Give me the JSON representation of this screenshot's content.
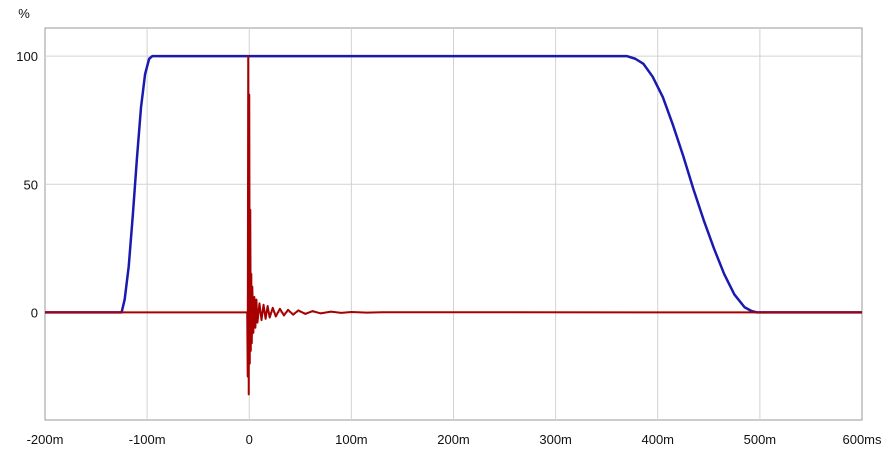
{
  "chart_data": {
    "type": "line",
    "y_unit": "%",
    "xlabel": "",
    "ylabel": "",
    "xlim": [
      -200,
      600
    ],
    "ylim": [
      -42,
      111
    ],
    "grid": true,
    "x_ticks": [
      {
        "value": -200,
        "label": "-200m"
      },
      {
        "value": -100,
        "label": "-100m"
      },
      {
        "value": 0,
        "label": "0"
      },
      {
        "value": 100,
        "label": "100m"
      },
      {
        "value": 200,
        "label": "200m"
      },
      {
        "value": 300,
        "label": "300m"
      },
      {
        "value": 400,
        "label": "400m"
      },
      {
        "value": 500,
        "label": "500m"
      },
      {
        "value": 600,
        "label": "600ms"
      }
    ],
    "y_ticks": [
      {
        "value": 100,
        "label": "100"
      },
      {
        "value": 50,
        "label": "50"
      },
      {
        "value": 0,
        "label": "0"
      }
    ],
    "series": [
      {
        "color": "#1a1ab0",
        "x": [
          -200,
          -125,
          -122,
          -118,
          -114,
          -110,
          -106,
          -102,
          -98,
          -95,
          370,
          378,
          386,
          395,
          405,
          415,
          425,
          435,
          445,
          455,
          465,
          475,
          485,
          492,
          497,
          600
        ],
        "y": [
          0,
          0,
          5,
          18,
          38,
          60,
          80,
          93,
          99,
          100,
          100,
          99,
          97,
          92,
          84,
          73,
          61,
          48,
          36,
          25,
          15,
          7,
          2,
          0.5,
          0,
          0
        ]
      },
      {
        "color": "#a80000",
        "x": [
          -200,
          -2,
          -1.5,
          -1,
          -0.5,
          0,
          0.5,
          1,
          1.5,
          2,
          2.5,
          3,
          4,
          5,
          6,
          7,
          8,
          10,
          12,
          14,
          16,
          18,
          20,
          23,
          26,
          30,
          34,
          38,
          43,
          48,
          55,
          62,
          70,
          80,
          90,
          100,
          115,
          130,
          600
        ],
        "y": [
          0,
          0,
          -25,
          100,
          -32,
          85,
          -20,
          40,
          -15,
          15,
          -12,
          10,
          -8,
          6,
          -6,
          5,
          -4,
          3.5,
          -3,
          3,
          -2.5,
          2.5,
          -2,
          1.8,
          -1.6,
          1.4,
          -1.2,
          1,
          -0.9,
          0.8,
          -0.6,
          0.5,
          -0.4,
          0.3,
          -0.2,
          0.15,
          -0.1,
          0.05,
          0
        ]
      }
    ]
  }
}
